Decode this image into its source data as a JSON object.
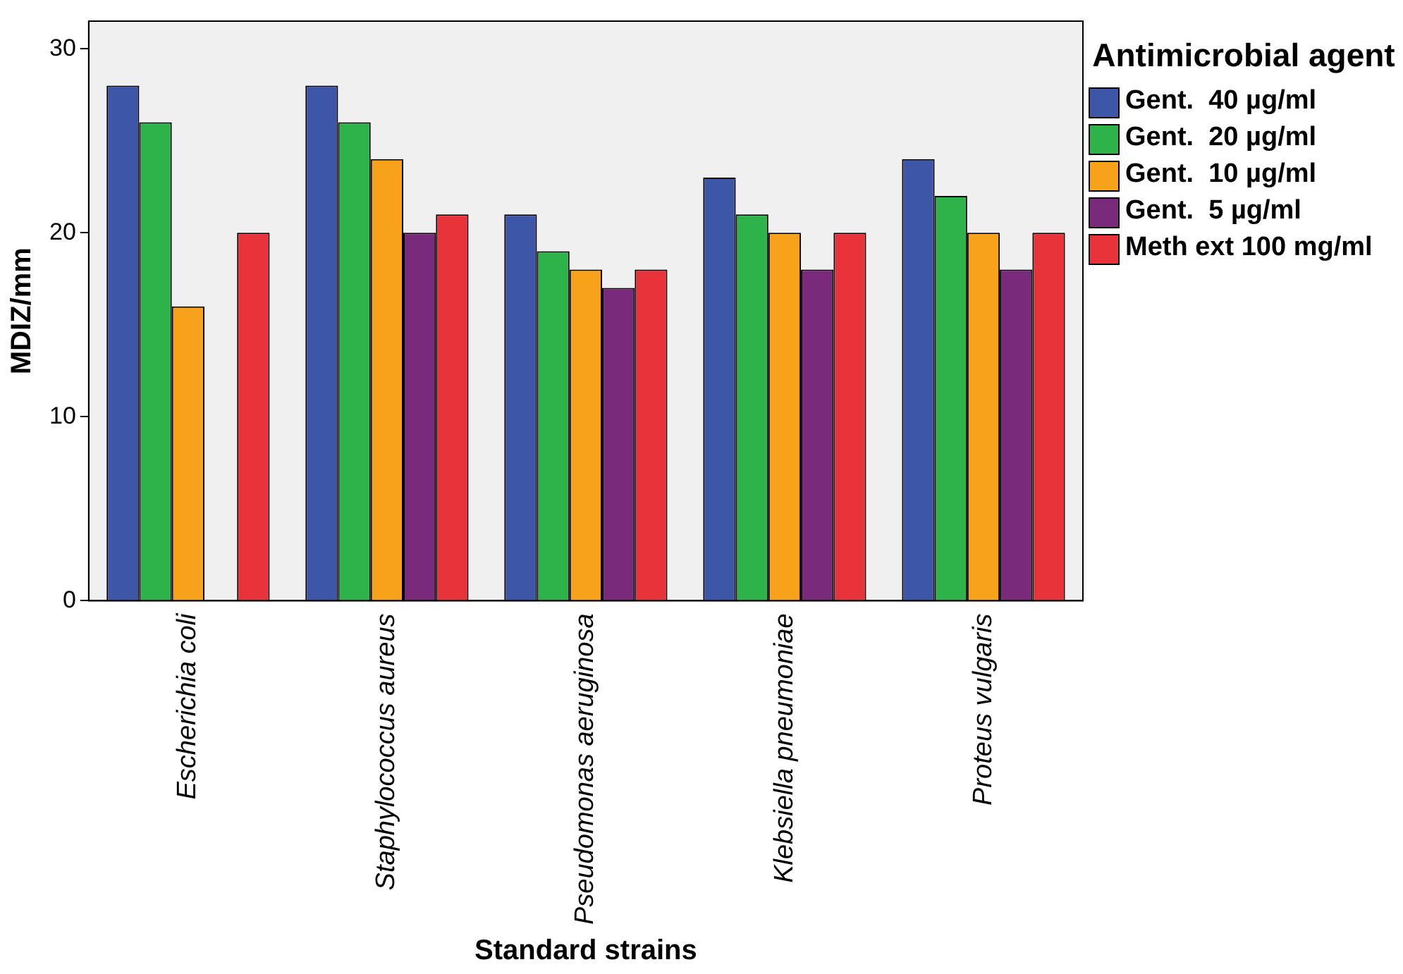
{
  "chart_data": {
    "type": "bar",
    "xlabel": "Standard strains",
    "ylabel": "MDIZ/mm",
    "legend_title": "Antimicrobial agent",
    "categories": [
      "Escherichia coli",
      "Staphylococcus aureus",
      "Pseudomonas aeruginosa",
      "Klebsiella pneumoniae",
      "Proteus vulgaris"
    ],
    "series": [
      {
        "name": "Gent.  40 µg/ml",
        "color": "#3e56a8",
        "values": [
          28,
          28,
          21,
          23,
          24
        ]
      },
      {
        "name": "Gent.  20 µg/ml",
        "color": "#2eb34a",
        "values": [
          26,
          26,
          19,
          21,
          22
        ]
      },
      {
        "name": "Gent.  10 µg/ml",
        "color": "#f8a21c",
        "values": [
          16,
          24,
          18,
          20,
          20
        ]
      },
      {
        "name": "Gent.  5 µg/ml",
        "color": "#7a2a7a",
        "values": [
          null,
          20,
          17,
          18,
          18
        ]
      },
      {
        "name": "Meth ext 100 mg/ml",
        "color": "#e8333b",
        "values": [
          20,
          21,
          18,
          20,
          20
        ]
      }
    ],
    "ylim": [
      0,
      31.5
    ],
    "yticks": [
      0,
      10,
      20,
      30
    ],
    "grid": false,
    "legend": "right"
  }
}
